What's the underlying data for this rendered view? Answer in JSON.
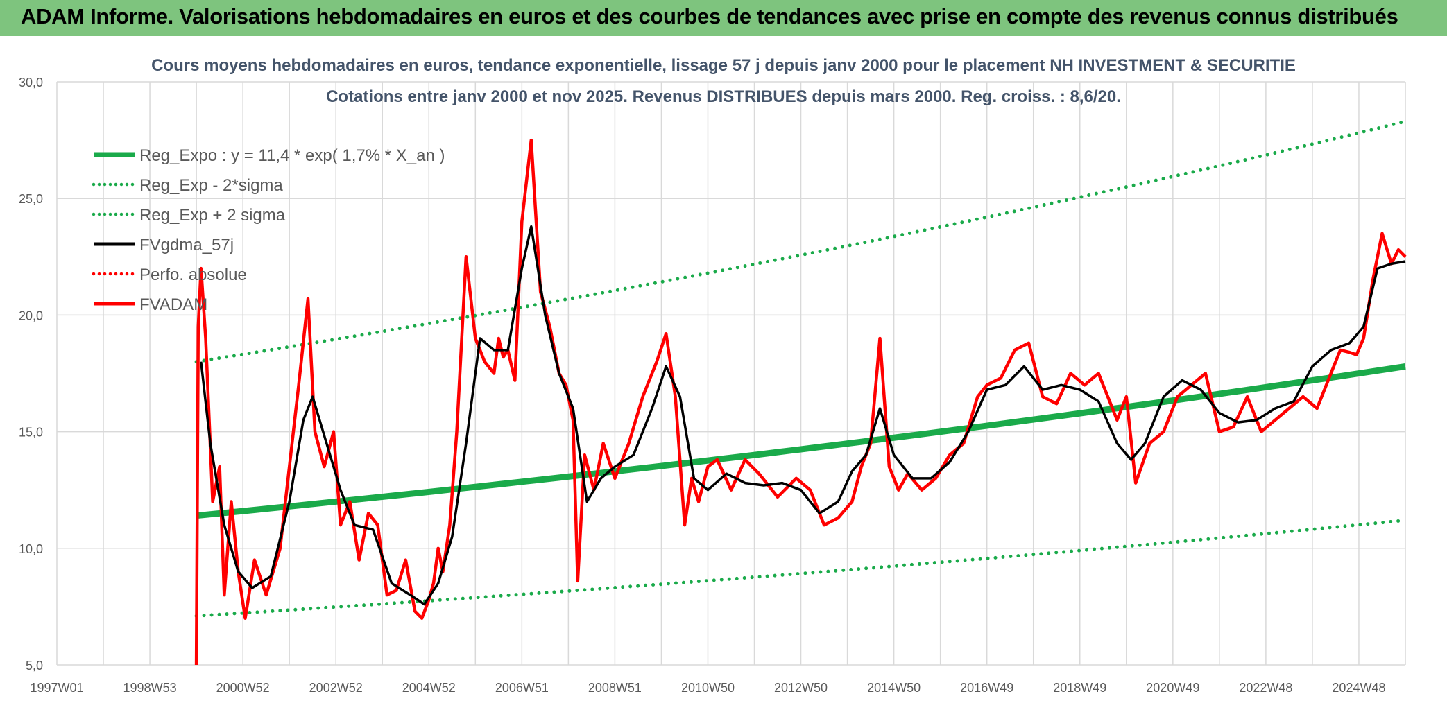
{
  "banner": {
    "title": "ADAM Informe. Valorisations hebdomadaires en euros et des courbes de tendances avec prise en compte des revenus connus distribués"
  },
  "colors": {
    "banner_bg": "#7ec47e",
    "trend": "#1aaa4a",
    "price": "#ff0000",
    "smooth": "#000000",
    "corner": "#e8b800"
  },
  "chart_data": {
    "type": "line",
    "title": "Cours moyens hebdomadaires en euros, tendance exponentielle, lissage 57 j depuis janv 2000 pour le placement NH INVESTMENT & SECURITIE",
    "subtitle": "Cotations entre janv 2000 et nov 2025. Revenus DISTRIBUES depuis mars 2000. Reg. croiss. : 8,6/20.",
    "xlabel": "",
    "ylabel": "",
    "ylim": [
      5,
      30
    ],
    "y_ticks": [
      "5,0",
      "10,0",
      "15,0",
      "20,0",
      "25,0",
      "30,0"
    ],
    "x_range": [
      1997.0,
      2026.0
    ],
    "x_ticks": [
      "1997W01",
      "1998W53",
      "2000W52",
      "2002W52",
      "2004W52",
      "2006W51",
      "2008W51",
      "2010W50",
      "2012W50",
      "2014W50",
      "2016W49",
      "2018W49",
      "2020W49",
      "2022W48",
      "2024W48"
    ],
    "grid": true,
    "legend_position": "top-left",
    "legend": [
      {
        "label": "Reg_Expo : y = 11,4 * exp( 1,7% *  X_an )",
        "style": "solid-thick",
        "color": "#1aaa4a"
      },
      {
        "label": "Reg_Exp - 2*sigma",
        "style": "dotted",
        "color": "#1aaa4a"
      },
      {
        "label": "Reg_Exp + 2 sigma",
        "style": "dotted",
        "color": "#1aaa4a"
      },
      {
        "label": "FVgdma_57j",
        "style": "solid",
        "color": "#000000"
      },
      {
        "label": "Perfo. absolue",
        "style": "dotted",
        "color": "#ff0000"
      },
      {
        "label": "FVADAM",
        "style": "solid",
        "color": "#ff0000"
      }
    ],
    "regression": {
      "start": 2000.0,
      "end": 2026.0,
      "values": [
        11.4,
        17.8
      ]
    },
    "band_lower": {
      "start": 2000.0,
      "end": 2026.0,
      "values": [
        7.1,
        11.2
      ]
    },
    "band_upper": {
      "start": 2000.0,
      "end": 2026.0,
      "values": [
        18.0,
        28.3
      ]
    },
    "series": [
      {
        "name": "FVADAM",
        "x": [
          2000.0,
          2000.04,
          2000.1,
          2000.2,
          2000.35,
          2000.5,
          2000.6,
          2000.75,
          2000.9,
          2001.05,
          2001.25,
          2001.5,
          2001.8,
          2002.0,
          2002.2,
          2002.4,
          2002.55,
          2002.75,
          2002.95,
          2003.1,
          2003.3,
          2003.5,
          2003.7,
          2003.9,
          2004.1,
          2004.3,
          2004.5,
          2004.7,
          2004.85,
          2005.0,
          2005.1,
          2005.2,
          2005.3,
          2005.45,
          2005.6,
          2005.8,
          2006.0,
          2006.2,
          2006.4,
          2006.5,
          2006.6,
          2006.7,
          2006.85,
          2007.0,
          2007.2,
          2007.4,
          2007.6,
          2007.8,
          2007.95,
          2008.1,
          2008.2,
          2008.35,
          2008.55,
          2008.75,
          2009.0,
          2009.3,
          2009.6,
          2009.9,
          2010.1,
          2010.3,
          2010.5,
          2010.65,
          2010.8,
          2011.0,
          2011.2,
          2011.5,
          2011.8,
          2012.1,
          2012.5,
          2012.9,
          2013.2,
          2013.5,
          2013.8,
          2014.1,
          2014.3,
          2014.5,
          2014.7,
          2014.9,
          2015.1,
          2015.3,
          2015.6,
          2015.9,
          2016.2,
          2016.5,
          2016.8,
          2017.0,
          2017.3,
          2017.6,
          2017.9,
          2018.2,
          2018.5,
          2018.8,
          2019.1,
          2019.4,
          2019.6,
          2019.8,
          2020.0,
          2020.2,
          2020.5,
          2020.8,
          2021.1,
          2021.4,
          2021.7,
          2022.0,
          2022.3,
          2022.6,
          2022.9,
          2023.2,
          2023.5,
          2023.8,
          2024.1,
          2024.4,
          2024.6,
          2024.8,
          2024.95,
          2025.1,
          2025.3,
          2025.5,
          2025.7,
          2025.85,
          2026.0
        ],
        "values": [
          5.0,
          19.5,
          22.0,
          19.0,
          12.0,
          13.5,
          8.0,
          12.0,
          9.0,
          7.0,
          9.5,
          8.0,
          10.0,
          13.5,
          17.0,
          20.7,
          15.0,
          13.5,
          15.0,
          11.0,
          12.0,
          9.5,
          11.5,
          11.0,
          8.0,
          8.2,
          9.5,
          7.3,
          7.0,
          7.8,
          8.5,
          10.0,
          9.0,
          11.0,
          15.0,
          22.5,
          19.0,
          18.0,
          17.5,
          19.0,
          18.2,
          18.5,
          17.2,
          24.0,
          27.5,
          21.0,
          19.5,
          17.5,
          17.0,
          15.5,
          8.6,
          14.0,
          12.5,
          14.5,
          13.0,
          14.5,
          16.5,
          18.0,
          19.2,
          16.5,
          11.0,
          13.0,
          12.0,
          13.5,
          13.8,
          12.5,
          13.8,
          13.2,
          12.2,
          13.0,
          12.5,
          11.0,
          11.3,
          12.0,
          13.5,
          14.5,
          19.0,
          13.5,
          12.5,
          13.2,
          12.5,
          13.0,
          14.0,
          14.5,
          16.5,
          17.0,
          17.3,
          18.5,
          18.8,
          16.5,
          16.2,
          17.5,
          17.0,
          17.5,
          16.5,
          15.5,
          16.5,
          12.8,
          14.5,
          15.0,
          16.5,
          17.0,
          17.5,
          15.0,
          15.2,
          16.5,
          15.0,
          15.5,
          16.0,
          16.5,
          16.0,
          17.5,
          18.5,
          18.4,
          18.3,
          19.0,
          21.5,
          23.5,
          22.2,
          22.8,
          22.5
        ]
      },
      {
        "name": "FVgdma_57j",
        "x": [
          2000.1,
          2000.3,
          2000.6,
          2000.9,
          2001.2,
          2001.6,
          2002.0,
          2002.3,
          2002.5,
          2002.8,
          2003.1,
          2003.4,
          2003.8,
          2004.2,
          2004.6,
          2004.9,
          2005.2,
          2005.5,
          2005.8,
          2006.1,
          2006.4,
          2006.7,
          2007.0,
          2007.2,
          2007.5,
          2007.8,
          2008.1,
          2008.4,
          2008.7,
          2009.0,
          2009.4,
          2009.8,
          2010.1,
          2010.4,
          2010.7,
          2011.0,
          2011.4,
          2011.8,
          2012.2,
          2012.6,
          2013.0,
          2013.4,
          2013.8,
          2014.1,
          2014.4,
          2014.7,
          2015.0,
          2015.4,
          2015.8,
          2016.2,
          2016.6,
          2017.0,
          2017.4,
          2017.8,
          2018.2,
          2018.6,
          2019.0,
          2019.4,
          2019.8,
          2020.1,
          2020.4,
          2020.8,
          2021.2,
          2021.6,
          2022.0,
          2022.4,
          2022.8,
          2023.2,
          2023.6,
          2024.0,
          2024.4,
          2024.8,
          2025.1,
          2025.4,
          2025.7,
          2026.0
        ],
        "values": [
          18.0,
          14.5,
          11.0,
          9.0,
          8.3,
          8.8,
          12.0,
          15.5,
          16.5,
          14.5,
          12.5,
          11.0,
          10.8,
          8.5,
          8.0,
          7.6,
          8.5,
          10.5,
          14.5,
          19.0,
          18.5,
          18.5,
          22.0,
          23.8,
          20.0,
          17.5,
          16.0,
          12.0,
          13.0,
          13.5,
          14.0,
          16.0,
          17.8,
          16.5,
          13.0,
          12.5,
          13.2,
          12.8,
          12.7,
          12.8,
          12.5,
          11.5,
          12.0,
          13.3,
          14.0,
          16.0,
          14.0,
          13.0,
          13.0,
          13.7,
          15.0,
          16.8,
          17.0,
          17.8,
          16.8,
          17.0,
          16.8,
          16.3,
          14.5,
          13.8,
          14.5,
          16.5,
          17.2,
          16.8,
          15.8,
          15.4,
          15.5,
          16.0,
          16.3,
          17.8,
          18.5,
          18.8,
          19.5,
          22.0,
          22.2,
          22.3
        ]
      }
    ]
  }
}
